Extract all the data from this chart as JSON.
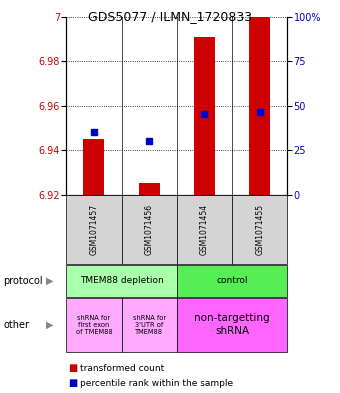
{
  "title": "GDS5077 / ILMN_1720833",
  "samples": [
    "GSM1071457",
    "GSM1071456",
    "GSM1071454",
    "GSM1071455"
  ],
  "bar_bottoms": [
    6.92,
    6.92,
    6.92,
    6.92
  ],
  "bar_tops": [
    6.945,
    6.925,
    6.991,
    7.0
  ],
  "percentile_values": [
    6.948,
    6.944,
    6.956,
    6.957
  ],
  "ylim": [
    6.92,
    7.0
  ],
  "yticks_left": [
    6.92,
    6.94,
    6.96,
    6.98,
    7.0
  ],
  "ytick_left_labels": [
    "6.92",
    "6.94",
    "6.96",
    "6.98",
    "7"
  ],
  "yticks_right_pct": [
    0,
    25,
    50,
    75,
    100
  ],
  "bar_color": "#cc0000",
  "dot_color": "#0000cc",
  "protocol_labels": [
    "TMEM88 depletion",
    "control"
  ],
  "protocol_colors": [
    "#aaffaa",
    "#55ee55"
  ],
  "other_labels_left": [
    "shRNA for\nfirst exon\nof TMEM88",
    "shRNA for\n3'UTR of\nTMEM88"
  ],
  "other_label_right": "non-targetting\nshRNA",
  "other_colors_left": [
    "#ffaaff",
    "#ffaaff"
  ],
  "other_color_right": "#ff66ff",
  "left_label_color": "#cc0000",
  "right_label_color": "#0000cc",
  "grid_linestyle": "dotted"
}
